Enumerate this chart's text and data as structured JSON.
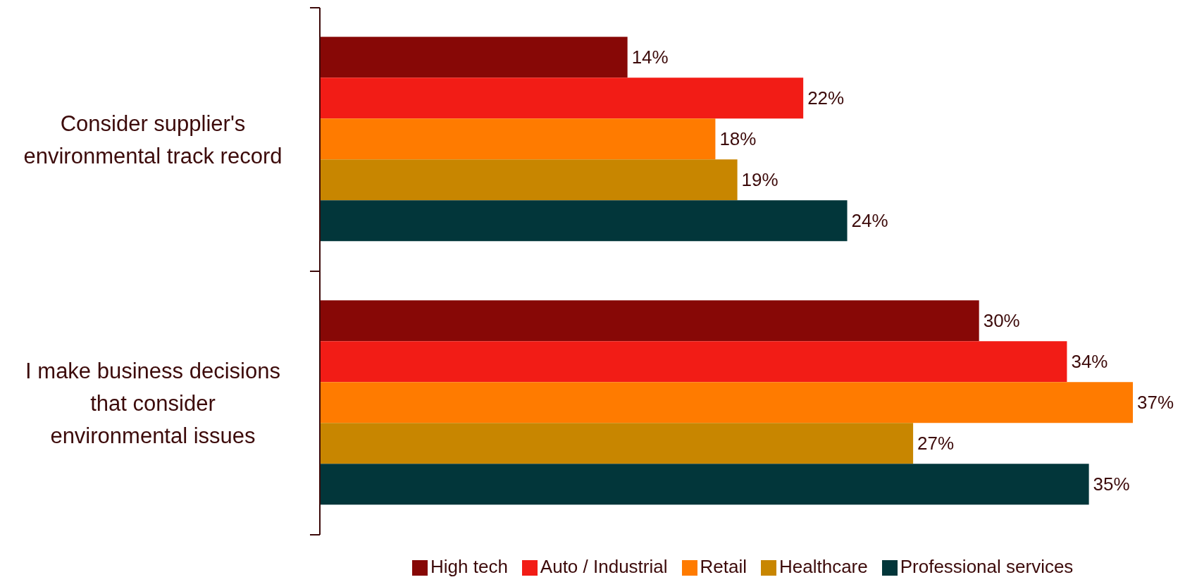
{
  "chart_data": {
    "type": "bar",
    "orientation": "horizontal",
    "legend": "bottom",
    "categories": [
      "Consider supplier's\nenvironmental track record",
      "I make business decisions\nthat consider\nenvironmental issues"
    ],
    "series": [
      {
        "name": "High tech",
        "color": "#870806",
        "values": [
          14,
          30
        ],
        "value_labels": [
          "14%",
          "30%"
        ]
      },
      {
        "name": "Auto / Industrial",
        "color": "#f21c16",
        "values": [
          22,
          34
        ],
        "value_labels": [
          "22%",
          "34%"
        ]
      },
      {
        "name": "Retail",
        "color": "#ff7b00",
        "values": [
          18,
          37
        ],
        "value_labels": [
          "18%",
          "37%"
        ]
      },
      {
        "name": "Healthcare",
        "color": "#c88600",
        "values": [
          19,
          27
        ],
        "value_labels": [
          "19%",
          "27%"
        ]
      },
      {
        "name": "Professional services",
        "color": "#02363a",
        "values": [
          24,
          35
        ],
        "value_labels": [
          "24%",
          "35%"
        ]
      }
    ]
  }
}
